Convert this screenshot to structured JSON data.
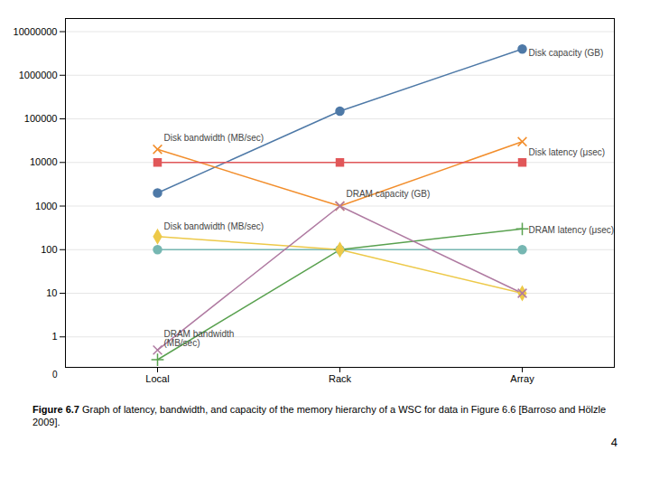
{
  "chart_data": {
    "type": "line",
    "categories": [
      "Local",
      "Rack",
      "Array"
    ],
    "series": [
      {
        "values": [
          2000,
          150000,
          4000000
        ],
        "marker": "circle"
      },
      {
        "values": [
          20000,
          1000,
          30000
        ],
        "marker": "times"
      },
      {
        "values": [
          10000,
          10000,
          10000
        ],
        "marker": "square"
      },
      {
        "values": [
          100,
          100,
          100
        ],
        "marker": "circle"
      },
      {
        "values": [
          0.3,
          100,
          300
        ],
        "marker": "plus"
      },
      {
        "values": [
          200,
          100,
          10
        ],
        "marker": "diamond"
      },
      {
        "values": [
          0.5,
          1000,
          10
        ],
        "marker": "times"
      }
    ],
    "log": "y",
    "ylim": [
      0.2,
      20000000
    ],
    "yticks": [
      1,
      10,
      100,
      1000,
      10000,
      100000,
      1000000,
      10000000
    ],
    "grid": true,
    "annotations": [
      {
        "text": "Disk capacity (GB)",
        "x": "Array",
        "y": 2500000
      },
      {
        "text": "Disk bandwidth (MB/sec)",
        "x": "Local",
        "y": 28000
      },
      {
        "text": "Disk latency (μsec)",
        "x": "Array",
        "y": 13000
      },
      {
        "text": "DRAM capacity (GB)",
        "x": "Rack",
        "y": 1500
      },
      {
        "text": "DRAM latency (μsec)",
        "x": "Array",
        "y": 220
      },
      {
        "text": "Disk bandwidth (MB/sec)",
        "x": "Local",
        "y": 260
      },
      {
        "text": "DRAM bandwidth\n(MB/sec)",
        "x": "Local",
        "y": 0.55
      },
      {
        "text": "0"
      }
    ],
    "caption": [
      "Figure 6.7",
      "Graph of latency, bandwidth, and capacity of the memory hierarchy of a WSC for data in Figure 6.6 [Barroso and Hölzle 2009]."
    ],
    "page_number": "4"
  }
}
